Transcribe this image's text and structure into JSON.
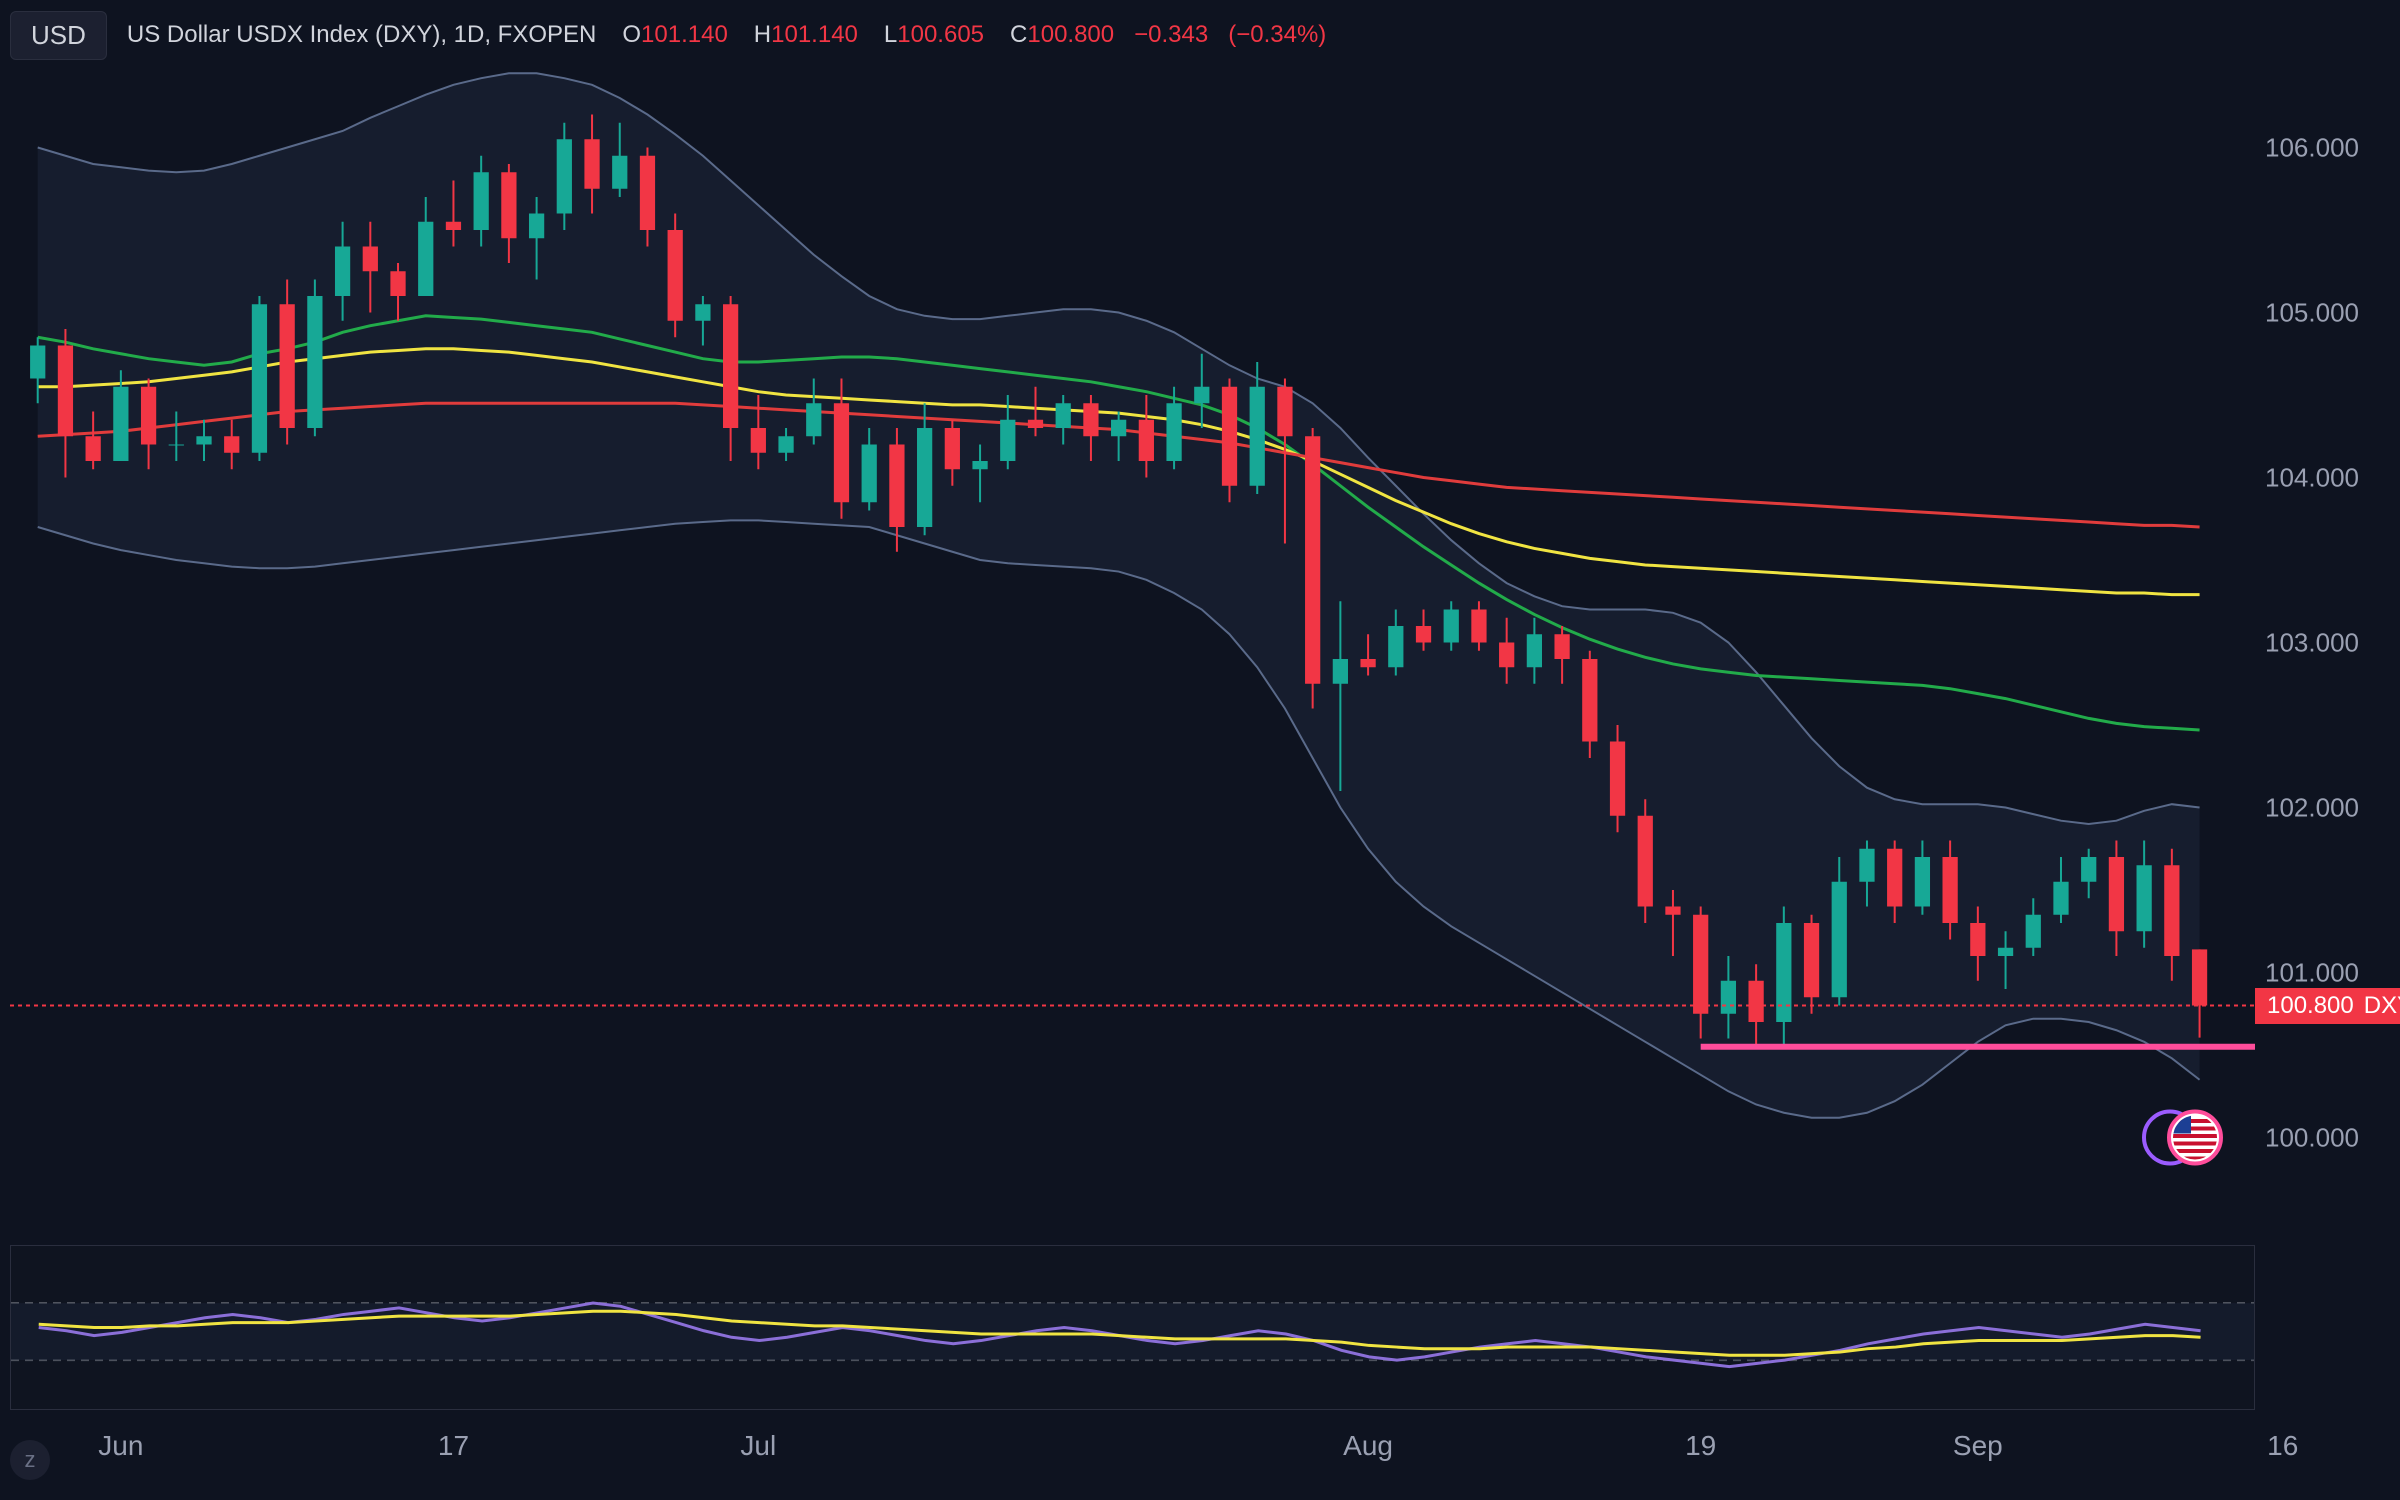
{
  "header": {
    "symbol_button": "USD",
    "title": "US Dollar USDX Index (DXY), 1D, FXOPEN",
    "ohlc": {
      "O_label": "O",
      "O": "101.140",
      "H_label": "H",
      "H": "101.140",
      "L_label": "L",
      "L": "100.605",
      "C_label": "C",
      "C": "100.800",
      "change": "−0.343",
      "change_pct": "(−0.34%)"
    }
  },
  "y_axis": {
    "min": 99.5,
    "max": 106.5,
    "ticks": [
      100.0,
      101.0,
      102.0,
      103.0,
      104.0,
      105.0,
      106.0
    ],
    "tick_labels": [
      "100.000",
      "101.000",
      "102.000",
      "103.000",
      "104.000",
      "105.000",
      "106.000"
    ]
  },
  "price_tag": {
    "value": "100.800",
    "symbol": "DXY",
    "y": 100.8
  },
  "x_axis": {
    "labels": [
      {
        "label": "Jun",
        "i": 3
      },
      {
        "label": "17",
        "i": 15
      },
      {
        "label": "Jul",
        "i": 26
      },
      {
        "label": "Aug",
        "i": 48
      },
      {
        "label": "19",
        "i": 60
      },
      {
        "label": "Sep",
        "i": 70
      },
      {
        "label": "16",
        "i": 81
      }
    ],
    "n": 82
  },
  "candles": [
    {
      "o": 104.6,
      "h": 104.85,
      "l": 104.45,
      "c": 104.8
    },
    {
      "o": 104.8,
      "h": 104.9,
      "l": 104.0,
      "c": 104.25
    },
    {
      "o": 104.25,
      "h": 104.4,
      "l": 104.05,
      "c": 104.1
    },
    {
      "o": 104.1,
      "h": 104.65,
      "l": 104.1,
      "c": 104.55
    },
    {
      "o": 104.55,
      "h": 104.6,
      "l": 104.05,
      "c": 104.2
    },
    {
      "o": 104.2,
      "h": 104.4,
      "l": 104.1,
      "c": 104.2
    },
    {
      "o": 104.2,
      "h": 104.35,
      "l": 104.1,
      "c": 104.25
    },
    {
      "o": 104.25,
      "h": 104.35,
      "l": 104.05,
      "c": 104.15
    },
    {
      "o": 104.15,
      "h": 105.1,
      "l": 104.1,
      "c": 105.05
    },
    {
      "o": 105.05,
      "h": 105.2,
      "l": 104.2,
      "c": 104.3
    },
    {
      "o": 104.3,
      "h": 105.2,
      "l": 104.25,
      "c": 105.1
    },
    {
      "o": 105.1,
      "h": 105.55,
      "l": 104.95,
      "c": 105.4
    },
    {
      "o": 105.4,
      "h": 105.55,
      "l": 105.0,
      "c": 105.25
    },
    {
      "o": 105.25,
      "h": 105.3,
      "l": 104.95,
      "c": 105.1
    },
    {
      "o": 105.1,
      "h": 105.7,
      "l": 105.1,
      "c": 105.55
    },
    {
      "o": 105.55,
      "h": 105.8,
      "l": 105.4,
      "c": 105.5
    },
    {
      "o": 105.5,
      "h": 105.95,
      "l": 105.4,
      "c": 105.85
    },
    {
      "o": 105.85,
      "h": 105.9,
      "l": 105.3,
      "c": 105.45
    },
    {
      "o": 105.45,
      "h": 105.7,
      "l": 105.2,
      "c": 105.6
    },
    {
      "o": 105.6,
      "h": 106.15,
      "l": 105.5,
      "c": 106.05
    },
    {
      "o": 106.05,
      "h": 106.2,
      "l": 105.6,
      "c": 105.75
    },
    {
      "o": 105.75,
      "h": 106.15,
      "l": 105.7,
      "c": 105.95
    },
    {
      "o": 105.95,
      "h": 106.0,
      "l": 105.4,
      "c": 105.5
    },
    {
      "o": 105.5,
      "h": 105.6,
      "l": 104.85,
      "c": 104.95
    },
    {
      "o": 104.95,
      "h": 105.1,
      "l": 104.8,
      "c": 105.05
    },
    {
      "o": 105.05,
      "h": 105.1,
      "l": 104.1,
      "c": 104.3
    },
    {
      "o": 104.3,
      "h": 104.5,
      "l": 104.05,
      "c": 104.15
    },
    {
      "o": 104.15,
      "h": 104.3,
      "l": 104.1,
      "c": 104.25
    },
    {
      "o": 104.25,
      "h": 104.6,
      "l": 104.2,
      "c": 104.45
    },
    {
      "o": 104.45,
      "h": 104.6,
      "l": 103.75,
      "c": 103.85
    },
    {
      "o": 103.85,
      "h": 104.3,
      "l": 103.8,
      "c": 104.2
    },
    {
      "o": 104.2,
      "h": 104.3,
      "l": 103.55,
      "c": 103.7
    },
    {
      "o": 103.7,
      "h": 104.45,
      "l": 103.65,
      "c": 104.3
    },
    {
      "o": 104.3,
      "h": 104.35,
      "l": 103.95,
      "c": 104.05
    },
    {
      "o": 104.05,
      "h": 104.2,
      "l": 103.85,
      "c": 104.1
    },
    {
      "o": 104.1,
      "h": 104.5,
      "l": 104.05,
      "c": 104.35
    },
    {
      "o": 104.35,
      "h": 104.55,
      "l": 104.25,
      "c": 104.3
    },
    {
      "o": 104.3,
      "h": 104.5,
      "l": 104.2,
      "c": 104.45
    },
    {
      "o": 104.45,
      "h": 104.5,
      "l": 104.1,
      "c": 104.25
    },
    {
      "o": 104.25,
      "h": 104.4,
      "l": 104.1,
      "c": 104.35
    },
    {
      "o": 104.35,
      "h": 104.5,
      "l": 104.0,
      "c": 104.1
    },
    {
      "o": 104.1,
      "h": 104.55,
      "l": 104.05,
      "c": 104.45
    },
    {
      "o": 104.45,
      "h": 104.75,
      "l": 104.3,
      "c": 104.55
    },
    {
      "o": 104.55,
      "h": 104.6,
      "l": 103.85,
      "c": 103.95
    },
    {
      "o": 103.95,
      "h": 104.7,
      "l": 103.9,
      "c": 104.55
    },
    {
      "o": 104.55,
      "h": 104.6,
      "l": 103.6,
      "c": 104.25
    },
    {
      "o": 104.25,
      "h": 104.3,
      "l": 102.6,
      "c": 102.75
    },
    {
      "o": 102.75,
      "h": 103.25,
      "l": 102.1,
      "c": 102.9
    },
    {
      "o": 102.9,
      "h": 103.05,
      "l": 102.8,
      "c": 102.85
    },
    {
      "o": 102.85,
      "h": 103.2,
      "l": 102.8,
      "c": 103.1
    },
    {
      "o": 103.1,
      "h": 103.2,
      "l": 102.95,
      "c": 103.0
    },
    {
      "o": 103.0,
      "h": 103.25,
      "l": 102.95,
      "c": 103.2
    },
    {
      "o": 103.2,
      "h": 103.25,
      "l": 102.95,
      "c": 103.0
    },
    {
      "o": 103.0,
      "h": 103.15,
      "l": 102.75,
      "c": 102.85
    },
    {
      "o": 102.85,
      "h": 103.15,
      "l": 102.75,
      "c": 103.05
    },
    {
      "o": 103.05,
      "h": 103.1,
      "l": 102.75,
      "c": 102.9
    },
    {
      "o": 102.9,
      "h": 102.95,
      "l": 102.3,
      "c": 102.4
    },
    {
      "o": 102.4,
      "h": 102.5,
      "l": 101.85,
      "c": 101.95
    },
    {
      "o": 101.95,
      "h": 102.05,
      "l": 101.3,
      "c": 101.4
    },
    {
      "o": 101.4,
      "h": 101.5,
      "l": 101.1,
      "c": 101.35
    },
    {
      "o": 101.35,
      "h": 101.4,
      "l": 100.6,
      "c": 100.75
    },
    {
      "o": 100.75,
      "h": 101.1,
      "l": 100.6,
      "c": 100.95
    },
    {
      "o": 100.95,
      "h": 101.05,
      "l": 100.55,
      "c": 100.7
    },
    {
      "o": 100.7,
      "h": 101.4,
      "l": 100.55,
      "c": 101.3
    },
    {
      "o": 101.3,
      "h": 101.35,
      "l": 100.75,
      "c": 100.85
    },
    {
      "o": 100.85,
      "h": 101.7,
      "l": 100.8,
      "c": 101.55
    },
    {
      "o": 101.55,
      "h": 101.8,
      "l": 101.4,
      "c": 101.75
    },
    {
      "o": 101.75,
      "h": 101.8,
      "l": 101.3,
      "c": 101.4
    },
    {
      "o": 101.4,
      "h": 101.8,
      "l": 101.35,
      "c": 101.7
    },
    {
      "o": 101.7,
      "h": 101.8,
      "l": 101.2,
      "c": 101.3
    },
    {
      "o": 101.3,
      "h": 101.4,
      "l": 100.95,
      "c": 101.1
    },
    {
      "o": 101.1,
      "h": 101.25,
      "l": 100.9,
      "c": 101.15
    },
    {
      "o": 101.15,
      "h": 101.45,
      "l": 101.1,
      "c": 101.35
    },
    {
      "o": 101.35,
      "h": 101.7,
      "l": 101.3,
      "c": 101.55
    },
    {
      "o": 101.55,
      "h": 101.75,
      "l": 101.45,
      "c": 101.7
    },
    {
      "o": 101.7,
      "h": 101.8,
      "l": 101.1,
      "c": 101.25
    },
    {
      "o": 101.25,
      "h": 101.8,
      "l": 101.15,
      "c": 101.65
    },
    {
      "o": 101.65,
      "h": 101.75,
      "l": 100.95,
      "c": 101.1
    },
    {
      "o": 101.14,
      "h": 101.14,
      "l": 100.605,
      "c": 100.8
    }
  ],
  "ma_lines": {
    "green": [
      104.85,
      104.82,
      104.78,
      104.75,
      104.72,
      104.7,
      104.68,
      104.7,
      104.75,
      104.78,
      104.82,
      104.88,
      104.92,
      104.95,
      104.98,
      104.97,
      104.96,
      104.94,
      104.92,
      104.9,
      104.88,
      104.84,
      104.8,
      104.76,
      104.72,
      104.7,
      104.7,
      104.71,
      104.72,
      104.73,
      104.73,
      104.72,
      104.7,
      104.68,
      104.66,
      104.64,
      104.62,
      104.6,
      104.58,
      104.55,
      104.52,
      104.48,
      104.44,
      104.38,
      104.3,
      104.2,
      104.08,
      103.95,
      103.82,
      103.7,
      103.58,
      103.47,
      103.36,
      103.26,
      103.17,
      103.09,
      103.02,
      102.96,
      102.91,
      102.87,
      102.84,
      102.82,
      102.8,
      102.79,
      102.78,
      102.77,
      102.76,
      102.75,
      102.74,
      102.72,
      102.69,
      102.66,
      102.62,
      102.58,
      102.54,
      102.51,
      102.49,
      102.48,
      102.47
    ],
    "yellow": [
      104.55,
      104.55,
      104.56,
      104.57,
      104.58,
      104.6,
      104.62,
      104.64,
      104.67,
      104.7,
      104.72,
      104.74,
      104.76,
      104.77,
      104.78,
      104.78,
      104.77,
      104.76,
      104.74,
      104.72,
      104.7,
      104.67,
      104.64,
      104.61,
      104.58,
      104.55,
      104.52,
      104.5,
      104.49,
      104.48,
      104.47,
      104.46,
      104.45,
      104.44,
      104.44,
      104.43,
      104.42,
      104.41,
      104.4,
      104.39,
      104.37,
      104.35,
      104.32,
      104.28,
      104.23,
      104.17,
      104.1,
      104.02,
      103.94,
      103.86,
      103.79,
      103.72,
      103.66,
      103.61,
      103.57,
      103.54,
      103.51,
      103.49,
      103.47,
      103.46,
      103.45,
      103.44,
      103.43,
      103.42,
      103.41,
      103.4,
      103.39,
      103.38,
      103.37,
      103.36,
      103.35,
      103.34,
      103.33,
      103.32,
      103.31,
      103.3,
      103.3,
      103.29,
      103.29
    ],
    "red": [
      104.25,
      104.26,
      104.27,
      104.28,
      104.3,
      104.32,
      104.34,
      104.36,
      104.38,
      104.4,
      104.41,
      104.42,
      104.43,
      104.44,
      104.45,
      104.45,
      104.45,
      104.45,
      104.45,
      104.45,
      104.45,
      104.45,
      104.45,
      104.45,
      104.44,
      104.43,
      104.42,
      104.41,
      104.4,
      104.39,
      104.38,
      104.37,
      104.36,
      104.35,
      104.34,
      104.33,
      104.32,
      104.31,
      104.3,
      104.29,
      104.27,
      104.25,
      104.23,
      104.21,
      104.18,
      104.15,
      104.12,
      104.09,
      104.06,
      104.03,
      104.0,
      103.98,
      103.96,
      103.94,
      103.93,
      103.92,
      103.91,
      103.9,
      103.89,
      103.88,
      103.87,
      103.86,
      103.85,
      103.84,
      103.83,
      103.82,
      103.81,
      103.8,
      103.79,
      103.78,
      103.77,
      103.76,
      103.75,
      103.74,
      103.73,
      103.72,
      103.71,
      103.71,
      103.7
    ]
  },
  "bb_band": {
    "upper": [
      106.0,
      105.95,
      105.9,
      105.88,
      105.86,
      105.85,
      105.86,
      105.9,
      105.95,
      106.0,
      106.05,
      106.1,
      106.18,
      106.25,
      106.32,
      106.38,
      106.42,
      106.45,
      106.45,
      106.42,
      106.38,
      106.3,
      106.2,
      106.08,
      105.95,
      105.8,
      105.65,
      105.5,
      105.35,
      105.22,
      105.1,
      105.02,
      104.98,
      104.96,
      104.96,
      104.98,
      105.0,
      105.02,
      105.02,
      105.0,
      104.95,
      104.88,
      104.78,
      104.68,
      104.6,
      104.55,
      104.45,
      104.3,
      104.12,
      103.95,
      103.78,
      103.62,
      103.48,
      103.36,
      103.28,
      103.22,
      103.2,
      103.2,
      103.2,
      103.18,
      103.12,
      103.0,
      102.82,
      102.62,
      102.42,
      102.25,
      102.12,
      102.05,
      102.02,
      102.02,
      102.02,
      102.0,
      101.96,
      101.92,
      101.9,
      101.92,
      101.98,
      102.02,
      102.0
    ],
    "lower": [
      103.7,
      103.65,
      103.6,
      103.56,
      103.53,
      103.5,
      103.48,
      103.46,
      103.45,
      103.45,
      103.46,
      103.48,
      103.5,
      103.52,
      103.54,
      103.56,
      103.58,
      103.6,
      103.62,
      103.64,
      103.66,
      103.68,
      103.7,
      103.72,
      103.73,
      103.74,
      103.74,
      103.73,
      103.72,
      103.71,
      103.7,
      103.65,
      103.6,
      103.55,
      103.5,
      103.48,
      103.47,
      103.46,
      103.45,
      103.43,
      103.38,
      103.3,
      103.2,
      103.05,
      102.85,
      102.6,
      102.3,
      102.0,
      101.75,
      101.55,
      101.4,
      101.28,
      101.18,
      101.08,
      100.98,
      100.88,
      100.78,
      100.68,
      100.58,
      100.48,
      100.38,
      100.28,
      100.2,
      100.15,
      100.12,
      100.12,
      100.15,
      100.22,
      100.32,
      100.45,
      100.58,
      100.68,
      100.72,
      100.72,
      100.7,
      100.65,
      100.58,
      100.48,
      100.35
    ]
  },
  "support_line": {
    "y": 100.55,
    "from_i": 60
  },
  "indicator": {
    "purple": [
      50,
      48,
      45,
      47,
      50,
      53,
      56,
      58,
      56,
      53,
      55,
      58,
      60,
      62,
      59,
      56,
      54,
      56,
      59,
      62,
      65,
      63,
      58,
      53,
      48,
      44,
      42,
      44,
      47,
      50,
      48,
      45,
      42,
      40,
      42,
      45,
      48,
      50,
      48,
      45,
      42,
      40,
      42,
      45,
      48,
      46,
      42,
      36,
      32,
      30,
      32,
      35,
      38,
      40,
      42,
      40,
      38,
      35,
      32,
      30,
      28,
      26,
      28,
      30,
      33,
      36,
      40,
      43,
      46,
      48,
      50,
      48,
      46,
      44,
      46,
      49,
      52,
      50,
      48
    ],
    "yellow": [
      52,
      51,
      50,
      50,
      51,
      51,
      52,
      53,
      53,
      53,
      54,
      55,
      56,
      57,
      57,
      57,
      57,
      57,
      58,
      59,
      60,
      60,
      59,
      58,
      56,
      54,
      53,
      52,
      51,
      51,
      50,
      49,
      48,
      47,
      46,
      46,
      46,
      46,
      46,
      45,
      44,
      43,
      43,
      43,
      43,
      43,
      42,
      41,
      39,
      38,
      37,
      37,
      37,
      38,
      38,
      38,
      38,
      37,
      36,
      35,
      34,
      33,
      33,
      33,
      34,
      35,
      37,
      38,
      40,
      41,
      42,
      42,
      42,
      42,
      43,
      44,
      45,
      45,
      44
    ],
    "upper_band": 65,
    "lower_band": 30
  },
  "colors": {
    "bg": "#0e1320",
    "bull": "#17a896",
    "bear": "#f23645",
    "ma_green": "#22ab4a",
    "ma_yellow": "#f0e442",
    "ma_red": "#e03c3c",
    "bb_fill": "#1c2438",
    "bb_stroke": "#5a6a8a",
    "support": "#ff4d9b",
    "ind_purple": "#8b6fd8",
    "ind_yellow": "#f0e442"
  },
  "z_button": "z"
}
